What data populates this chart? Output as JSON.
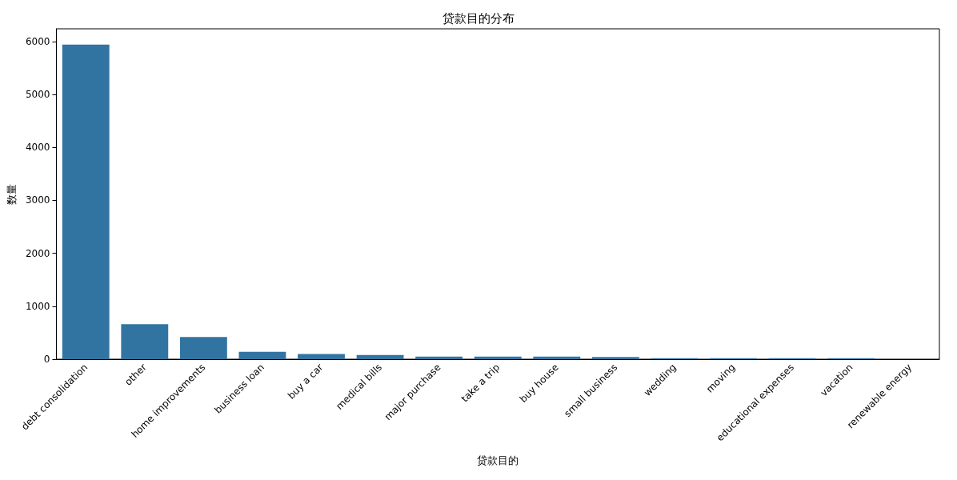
{
  "chart_data": {
    "type": "bar",
    "title": "贷款目的分布",
    "xlabel": "贷款目的",
    "ylabel": "数量",
    "categories": [
      "debt consolidation",
      "other",
      "home improvements",
      "business loan",
      "buy a car",
      "medical bills",
      "major purchase",
      "take a trip",
      "buy house",
      "small business",
      "wedding",
      "moving",
      "educational expenses",
      "vacation",
      "renewable energy"
    ],
    "values": [
      5940,
      660,
      420,
      140,
      100,
      80,
      50,
      50,
      50,
      40,
      20,
      20,
      20,
      20,
      0
    ],
    "color": "#3274a1",
    "ylim": [
      0,
      6240
    ],
    "yticks": [
      0,
      1000,
      2000,
      3000,
      4000,
      5000,
      6000
    ],
    "grid": false
  }
}
